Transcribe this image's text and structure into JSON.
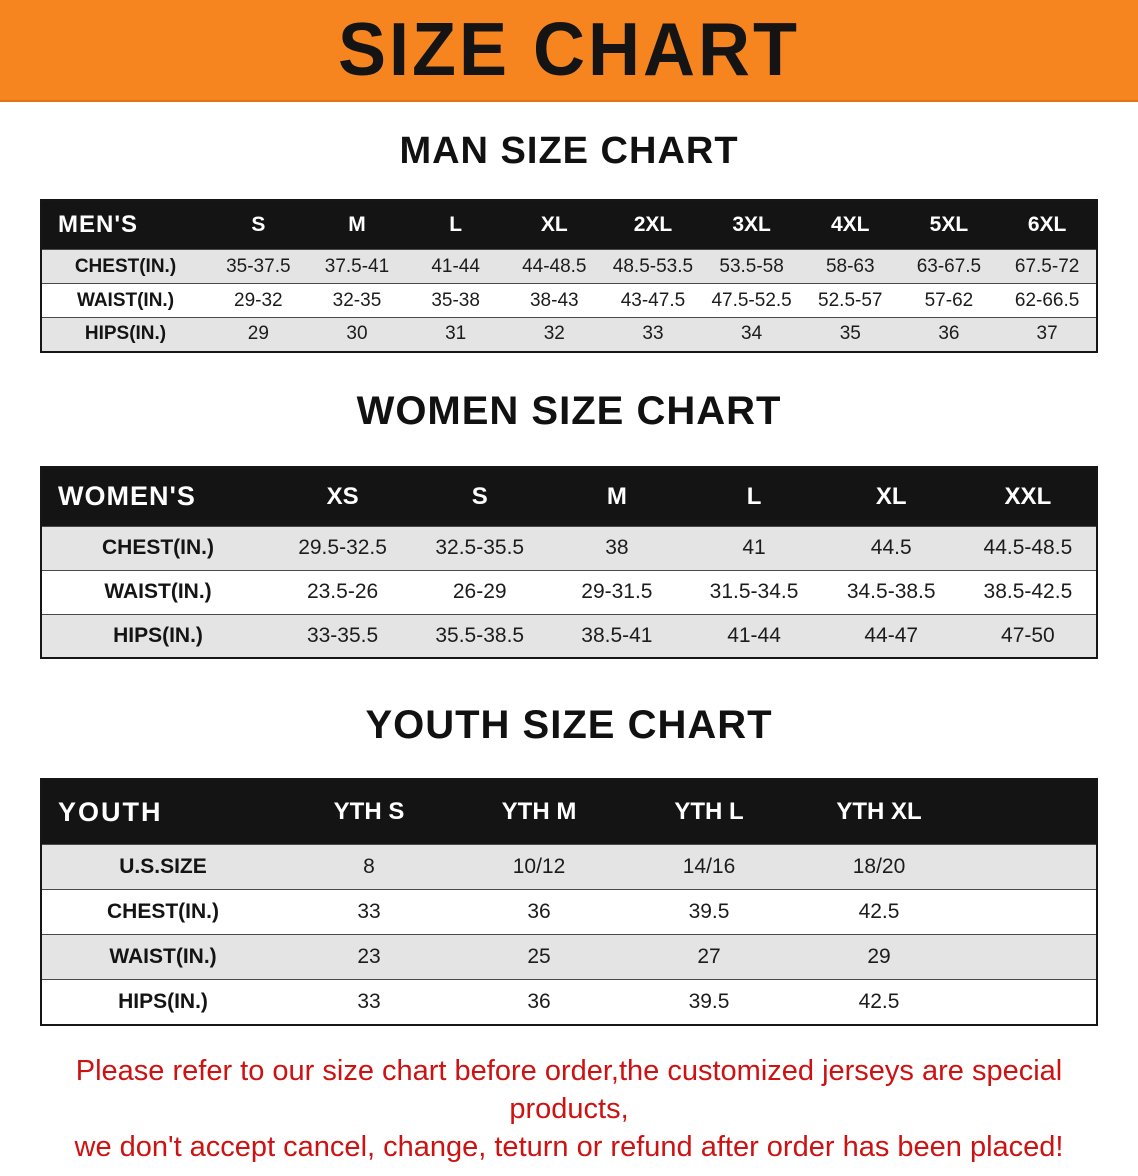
{
  "banner": {
    "title": "SIZE CHART"
  },
  "headings": {
    "men": "MAN SIZE CHART",
    "women": "WOMEN SIZE CHART",
    "youth": "YOUTH SIZE CHART"
  },
  "tables": {
    "men": {
      "header": [
        "MEN'S",
        "S",
        "M",
        "L",
        "XL",
        "2XL",
        "3XL",
        "4XL",
        "5XL",
        "6XL"
      ],
      "rows": [
        [
          "CHEST(IN.)",
          "35-37.5",
          "37.5-41",
          "41-44",
          "44-48.5",
          "48.5-53.5",
          "53.5-58",
          "58-63",
          "63-67.5",
          "67.5-72"
        ],
        [
          "WAIST(IN.)",
          "29-32",
          "32-35",
          "35-38",
          "38-43",
          "43-47.5",
          "47.5-52.5",
          "52.5-57",
          "57-62",
          "62-66.5"
        ],
        [
          "HIPS(IN.)",
          "29",
          "30",
          "31",
          "32",
          "33",
          "34",
          "35",
          "36",
          "37"
        ]
      ]
    },
    "women": {
      "header": [
        "WOMEN'S",
        "XS",
        "S",
        "M",
        "L",
        "XL",
        "XXL"
      ],
      "rows": [
        [
          "CHEST(IN.)",
          "29.5-32.5",
          "32.5-35.5",
          "38",
          "41",
          "44.5",
          "44.5-48.5"
        ],
        [
          "WAIST(IN.)",
          "23.5-26",
          "26-29",
          "29-31.5",
          "31.5-34.5",
          "34.5-38.5",
          "38.5-42.5"
        ],
        [
          "HIPS(IN.)",
          "33-35.5",
          "35.5-38.5",
          "38.5-41",
          "41-44",
          "44-47",
          "47-50"
        ]
      ]
    },
    "youth": {
      "header": [
        "YOUTH",
        "YTH S",
        "YTH M",
        "YTH L",
        "YTH XL"
      ],
      "rows": [
        [
          "U.S.SIZE",
          "8",
          "10/12",
          "14/16",
          "18/20"
        ],
        [
          "CHEST(IN.)",
          "33",
          "36",
          "39.5",
          "42.5"
        ],
        [
          "WAIST(IN.)",
          "23",
          "25",
          "27",
          "29"
        ],
        [
          "HIPS(IN.)",
          "33",
          "36",
          "39.5",
          "42.5"
        ]
      ]
    }
  },
  "footer": {
    "line1": "Please refer to our size chart before order,the customized jerseys are special products,",
    "line2": "we don't accept cancel, change, teturn or refund after order has been placed!"
  },
  "colors": {
    "banner_orange": "#f6851f",
    "table_header_black": "#141414",
    "row_gray": "#e4e4e4",
    "footer_red": "#ce1111"
  }
}
